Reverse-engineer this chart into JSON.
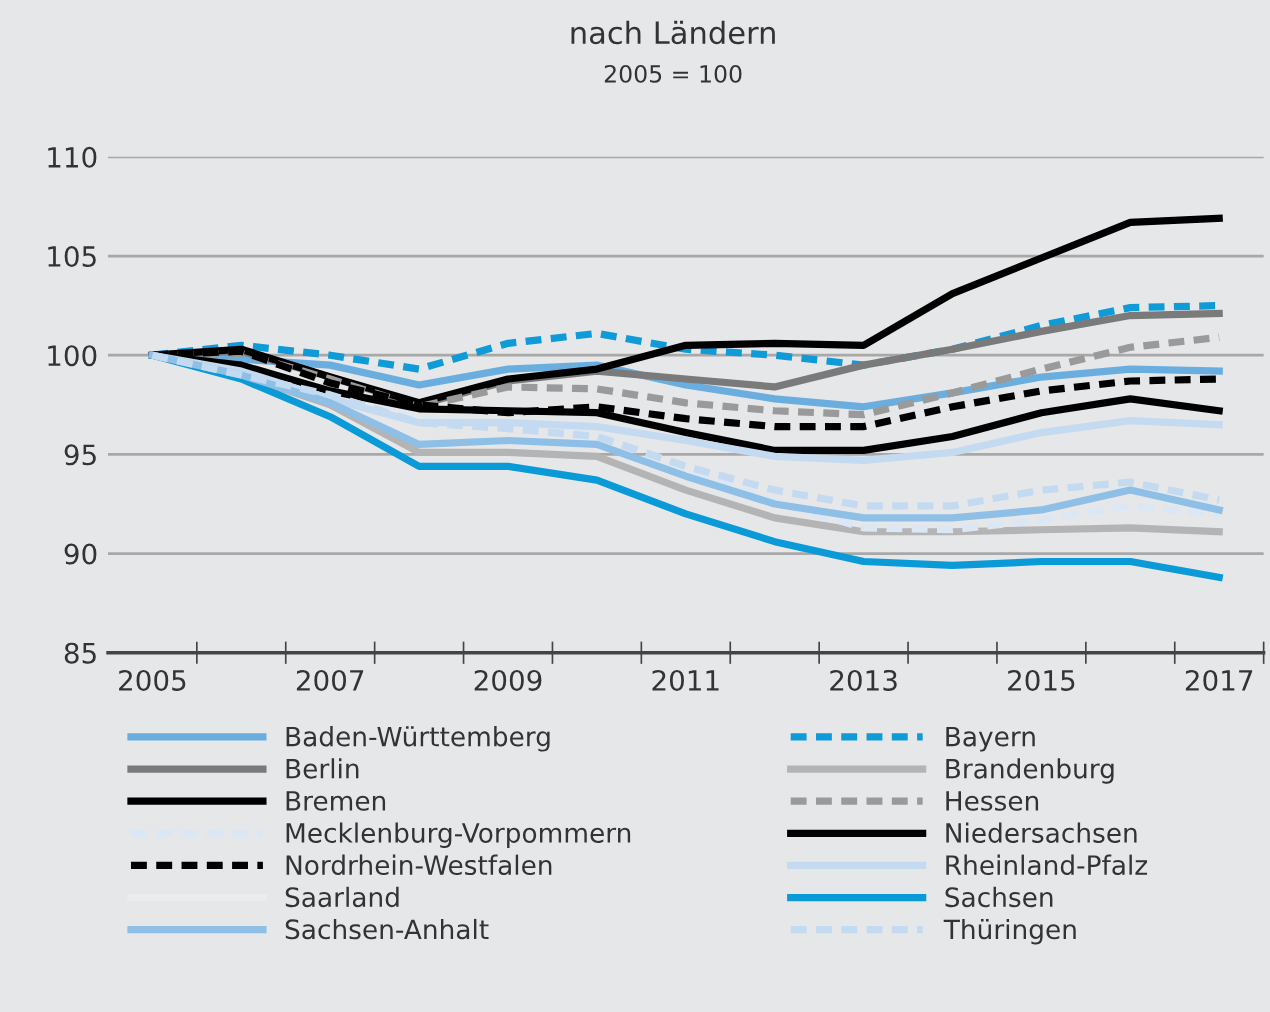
{
  "chart_data": {
    "type": "line",
    "title": "nach Ländern",
    "subtitle": "2005 = 100",
    "x": [
      2005,
      2006,
      2007,
      2008,
      2009,
      2010,
      2011,
      2012,
      2013,
      2014,
      2015,
      2016,
      2017
    ],
    "series": [
      {
        "name": "Baden-Württemberg",
        "color": "#6aaee0",
        "values": [
          100,
          99.8,
          99.5,
          98.5,
          99.3,
          99.5,
          98.5,
          97.8,
          97.4,
          98.1,
          98.9,
          99.3,
          99.2
        ]
      },
      {
        "name": "Bayern",
        "color": "#0f9ad8",
        "line_style": "dashed",
        "values": [
          100,
          100.5,
          100,
          99.3,
          100.6,
          101.1,
          100.3,
          100,
          99.5,
          100.3,
          101.5,
          102.4,
          102.5
        ]
      },
      {
        "name": "Berlin",
        "color": "#7a7a7a",
        "values": [
          100,
          100.2,
          98.9,
          97.5,
          98.7,
          99.2,
          98.8,
          98.4,
          99.5,
          100.3,
          101.2,
          102.0,
          102.1
        ]
      },
      {
        "name": "Brandenburg",
        "color": "#b4b4b4",
        "values": [
          100,
          99,
          97.5,
          95.1,
          95.1,
          94.9,
          93.2,
          91.8,
          91.1,
          91.1,
          91.2,
          91.3,
          91.1
        ]
      },
      {
        "name": "Bremen",
        "color": "#000000",
        "values": [
          100,
          100.3,
          98.9,
          97.6,
          98.8,
          99.3,
          100.5,
          100.6,
          100.5,
          103.1,
          104.9,
          106.7,
          106.9
        ]
      },
      {
        "name": "Hessen",
        "color": "#9a9a9a",
        "line_style": "dashed",
        "values": [
          100,
          100.1,
          98.8,
          97.4,
          98.4,
          98.3,
          97.6,
          97.2,
          97.0,
          98.1,
          99.3,
          100.4,
          100.9
        ]
      },
      {
        "name": "Mecklenburg-Vorpommern",
        "color": "#dbe7f4",
        "line_style": "dashed",
        "values": [
          100,
          99,
          97.8,
          96.8,
          96.5,
          96.0,
          94.3,
          92.6,
          91.3,
          91.2,
          91.7,
          92.4,
          92.0
        ]
      },
      {
        "name": "Niedersachsen",
        "color": "#000000",
        "values": [
          100,
          99.5,
          98.2,
          97.3,
          97.2,
          97.1,
          96.1,
          95.2,
          95.2,
          95.9,
          97.1,
          97.8,
          97.2
        ]
      },
      {
        "name": "Nordrhein-Westfalen",
        "color": "#000000",
        "line_style": "dashed",
        "values": [
          100,
          100.2,
          98.6,
          97.5,
          97.1,
          97.4,
          96.8,
          96.4,
          96.4,
          97.4,
          98.2,
          98.7,
          98.8
        ]
      },
      {
        "name": "Rheinland-Pfalz",
        "color": "#c4daf0",
        "values": [
          100,
          99.2,
          97.8,
          96.6,
          96.6,
          96.4,
          95.7,
          94.9,
          94.7,
          95.1,
          96.1,
          96.7,
          96.5
        ]
      },
      {
        "name": "Saarland",
        "color": "#ececec",
        "values": [
          null,
          null,
          null,
          null,
          null,
          null,
          null,
          null,
          null,
          null,
          null,
          null,
          null
        ]
      },
      {
        "name": "Sachsen",
        "color": "#0a9ad8",
        "values": [
          100,
          98.8,
          96.9,
          94.4,
          94.4,
          93.7,
          92.0,
          90.6,
          89.6,
          89.4,
          89.6,
          89.6,
          88.8
        ]
      },
      {
        "name": "Sachsen-Anhalt",
        "color": "#8ebfe6",
        "values": [
          100,
          99,
          97.6,
          95.5,
          95.7,
          95.5,
          93.9,
          92.5,
          91.8,
          91.8,
          92.2,
          93.2,
          92.2
        ]
      },
      {
        "name": "Thüringen",
        "color": "#c4daf0",
        "line_style": "dashed",
        "values": [
          100,
          99,
          98,
          96.6,
          96.3,
          95.9,
          94.4,
          93.2,
          92.4,
          92.4,
          93.2,
          93.6,
          92.7
        ]
      }
    ],
    "xlim": [
      2004.5,
      2017.5
    ],
    "xticks": [
      2005,
      2007,
      2009,
      2011,
      2013,
      2015,
      2017,
      {
        "value": 2005.5,
        "label": null
      },
      {
        "value": 2006.5,
        "label": null
      },
      {
        "value": 2007.5,
        "label": null
      },
      {
        "value": 2008.5,
        "label": null
      },
      {
        "value": 2009.5,
        "label": null
      },
      {
        "value": 2010.5,
        "label": null
      },
      {
        "value": 2011.5,
        "label": null
      },
      {
        "value": 2012.5,
        "label": null
      },
      {
        "value": 2013.5,
        "label": null
      },
      {
        "value": 2014.5,
        "label": null
      },
      {
        "value": 2015.5,
        "label": null
      },
      {
        "value": 2016.5,
        "label": null
      },
      {
        "value": 2017.5,
        "label": null
      }
    ],
    "ylim": [
      85,
      110
    ],
    "yticks": [
      85,
      90,
      95,
      100,
      105,
      110
    ],
    "grid": "y",
    "legend": "bottom",
    "marker": "none"
  }
}
